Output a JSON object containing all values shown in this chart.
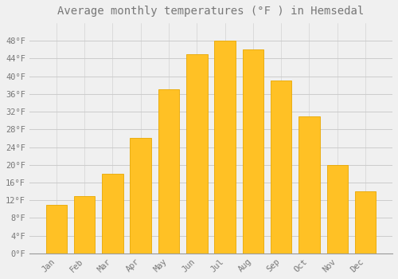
{
  "title": "Average monthly temperatures (°F ) in Hemsedal",
  "months": [
    "Jan",
    "Feb",
    "Mar",
    "Apr",
    "May",
    "Jun",
    "Jul",
    "Aug",
    "Sep",
    "Oct",
    "Nov",
    "Dec"
  ],
  "values": [
    11,
    13,
    18,
    26,
    37,
    45,
    48,
    46,
    39,
    31,
    20,
    14
  ],
  "bar_color": "#FFC125",
  "bar_edge_color": "#E8A800",
  "background_color": "#F0F0F0",
  "grid_color": "#CCCCCC",
  "text_color": "#777777",
  "ylim": [
    0,
    52
  ],
  "yticks": [
    0,
    4,
    8,
    12,
    16,
    20,
    24,
    28,
    32,
    36,
    40,
    44,
    48
  ],
  "ytick_labels": [
    "0°F",
    "4°F",
    "8°F",
    "12°F",
    "16°F",
    "20°F",
    "24°F",
    "28°F",
    "32°F",
    "36°F",
    "40°F",
    "44°F",
    "48°F"
  ],
  "title_fontsize": 10,
  "tick_fontsize": 7.5,
  "font_family": "monospace",
  "bar_width": 0.75,
  "figsize": [
    5.0,
    3.5
  ],
  "dpi": 100
}
